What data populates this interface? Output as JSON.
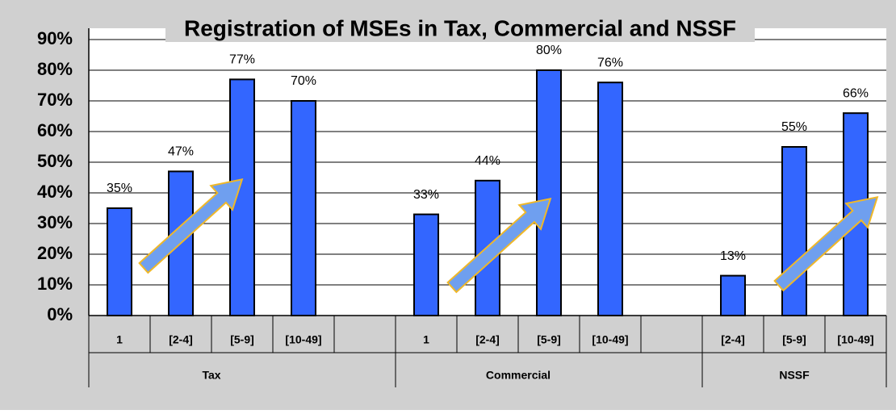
{
  "chart_data": {
    "type": "bar",
    "title": "Registration of MSEs in Tax, Commercial and NSSF",
    "categories": [
      "1",
      "[2-4]",
      "[5-9]",
      "[10-49]",
      null,
      "1",
      "[2-4]",
      "[5-9]",
      "[10-49]",
      null,
      "[2-4]",
      "[5-9]",
      "[10-49]"
    ],
    "groups": [
      {
        "name": "Tax",
        "start": 0,
        "end": 3
      },
      {
        "name": "Commercial",
        "start": 5,
        "end": 8
      },
      {
        "name": "NSSF",
        "start": 10,
        "end": 12
      }
    ],
    "values": [
      35,
      47,
      77,
      70,
      null,
      33,
      44,
      80,
      76,
      null,
      13,
      55,
      66
    ],
    "value_labels": [
      "35%",
      "47%",
      "77%",
      "70%",
      null,
      "33%",
      "44%",
      "80%",
      "76%",
      null,
      "13%",
      "55%",
      "66%"
    ],
    "color": "#3366ff",
    "ylim": [
      0,
      90
    ],
    "yticks": [
      {
        "value": 0,
        "label": "0%"
      },
      {
        "value": 10,
        "label": "10%"
      },
      {
        "value": 20,
        "label": "20%"
      },
      {
        "value": 30,
        "label": "30%"
      },
      {
        "value": 40,
        "label": "40%"
      },
      {
        "value": 50,
        "label": "50%"
      },
      {
        "value": 60,
        "label": "60%"
      },
      {
        "value": 70,
        "label": "70%"
      },
      {
        "value": 80,
        "label": "80%"
      },
      {
        "value": 90,
        "label": "90%"
      }
    ],
    "grid": true
  }
}
